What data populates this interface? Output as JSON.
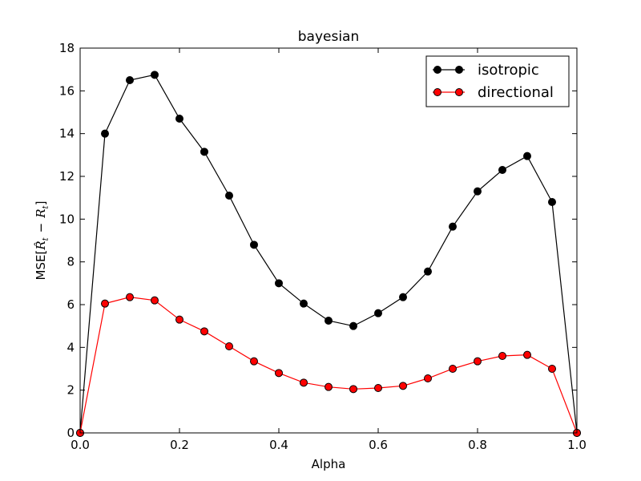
{
  "chart_data": {
    "type": "line",
    "title": "bayesian",
    "xlabel": "Alpha",
    "ylabel_prefix": "MSE[",
    "ylabel_math_1": "R̂",
    "ylabel_sub_1": "t",
    "ylabel_minus": "−",
    "ylabel_math_2": "R",
    "ylabel_sub_2": "t",
    "ylabel_suffix": "]",
    "xlim": [
      0,
      1
    ],
    "ylim": [
      0,
      18
    ],
    "xticks": [
      "0.0",
      "0.2",
      "0.4",
      "0.6",
      "0.8",
      "1.0"
    ],
    "yticks": [
      "0",
      "2",
      "4",
      "6",
      "8",
      "10",
      "12",
      "14",
      "16",
      "18"
    ],
    "grid": false,
    "legend_position": "top-right",
    "x": [
      0.0,
      0.05,
      0.1,
      0.15,
      0.2,
      0.25,
      0.3,
      0.35,
      0.4,
      0.45,
      0.5,
      0.55,
      0.6,
      0.65,
      0.7,
      0.75,
      0.8,
      0.85,
      0.9,
      0.95,
      1.0
    ],
    "series": [
      {
        "name": "isotropic",
        "color": "#000000",
        "values": [
          0.0,
          14.0,
          16.5,
          16.75,
          14.7,
          13.15,
          11.1,
          8.8,
          7.0,
          6.05,
          5.25,
          5.0,
          5.6,
          6.35,
          7.55,
          9.65,
          11.3,
          12.3,
          12.95,
          10.8,
          0.0
        ]
      },
      {
        "name": "directional",
        "color": "#ff0000",
        "values": [
          0.0,
          6.05,
          6.35,
          6.2,
          5.3,
          4.75,
          4.05,
          3.35,
          2.8,
          2.35,
          2.15,
          2.05,
          2.1,
          2.2,
          2.55,
          3.0,
          3.35,
          3.6,
          3.65,
          3.0,
          0.0
        ]
      }
    ]
  }
}
